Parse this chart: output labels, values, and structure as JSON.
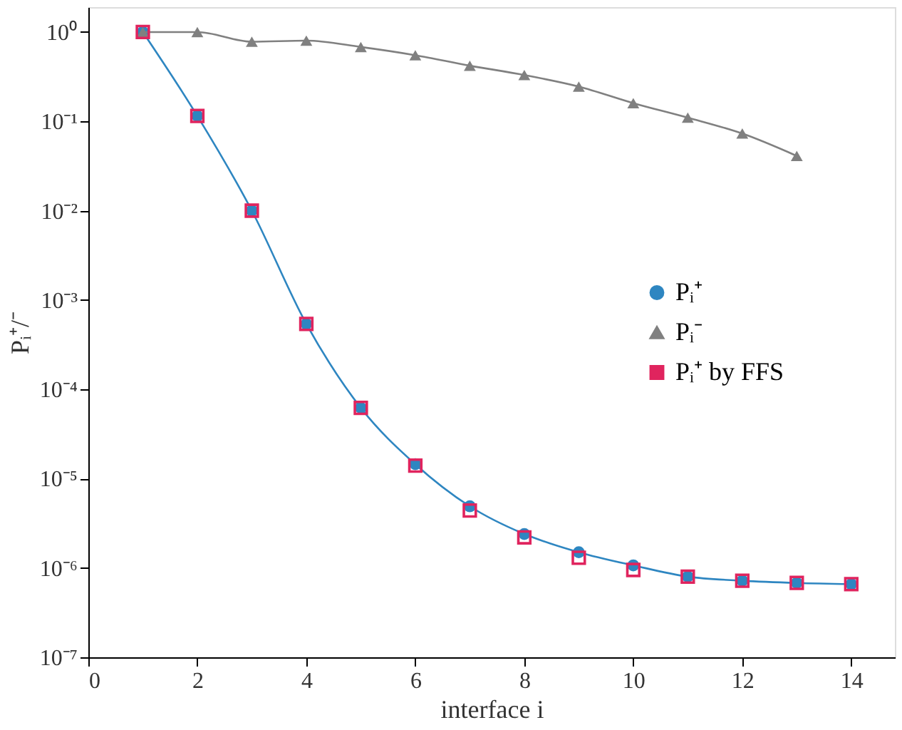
{
  "chart_data": {
    "type": "line",
    "xlabel": "interface i",
    "ylabel": "Pᵢ⁺/⁻",
    "log": "y",
    "xlim": [
      0,
      14.8
    ],
    "xticks": [
      0,
      2,
      4,
      6,
      8,
      10,
      12,
      14
    ],
    "ylim": [
      1e-07,
      1.9
    ],
    "yticks": [
      {
        "value": 1,
        "label": "10⁰"
      },
      {
        "value": 0.1,
        "label": "10⁻¹"
      },
      {
        "value": 0.01,
        "label": "10⁻²"
      },
      {
        "value": 0.001,
        "label": "10⁻³"
      },
      {
        "value": 0.0001,
        "label": "10⁻⁴"
      },
      {
        "value": 1e-05,
        "label": "10⁻⁵"
      },
      {
        "value": 1e-06,
        "label": "10⁻⁶"
      },
      {
        "value": 1e-07,
        "label": "10⁻⁷"
      }
    ],
    "grid": false,
    "legend": "right",
    "series": [
      {
        "name": "Pᵢ⁺",
        "marker": "circle",
        "color": "#2e86c1",
        "x": [
          1,
          2,
          3,
          4,
          5,
          6,
          7,
          8,
          9,
          10,
          11,
          12,
          13,
          14
        ],
        "values": [
          1,
          0.115,
          0.01,
          0.00054,
          6.2e-05,
          1.45e-05,
          4.9e-06,
          2.4e-06,
          1.5e-06,
          1.07e-06,
          8e-07,
          7.2e-07,
          6.8e-07,
          6.6e-07
        ]
      },
      {
        "name": "Pᵢ⁻",
        "marker": "triangle",
        "color": "#808080",
        "x": [
          1,
          2,
          3,
          4,
          5,
          6,
          7,
          8,
          9,
          10,
          11,
          12,
          13
        ],
        "values": [
          1,
          1,
          0.78,
          0.8,
          0.68,
          0.55,
          0.42,
          0.33,
          0.245,
          0.16,
          0.11,
          0.073,
          0.041
        ]
      },
      {
        "name": "Pᵢ⁺ by FFS",
        "type": "scatter",
        "marker": "square",
        "color": "#e0245e",
        "x": [
          1,
          2,
          3,
          4,
          5,
          6,
          7,
          8,
          9,
          10,
          11,
          12,
          13,
          14
        ],
        "values": [
          1,
          0.115,
          0.01,
          0.00054,
          6.2e-05,
          1.4e-05,
          4.4e-06,
          2.2e-06,
          1.3e-06,
          9.5e-07,
          8e-07,
          7.2e-07,
          6.8e-07,
          6.6e-07
        ]
      }
    ]
  }
}
